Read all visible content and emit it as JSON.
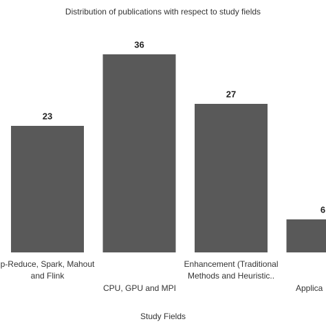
{
  "chart_data": {
    "type": "bar",
    "title": "Distribution of publications with respect to study fields",
    "x_label": "Study Fields",
    "categories": [
      "p-Reduce, Spark, Mahout\nand Flink",
      "CPU, GPU and MPI",
      "Enhancement (Traditional\nMethods and Heuristic..",
      "Applica"
    ],
    "values": [
      23,
      36,
      27,
      6
    ],
    "color": "#595959"
  }
}
